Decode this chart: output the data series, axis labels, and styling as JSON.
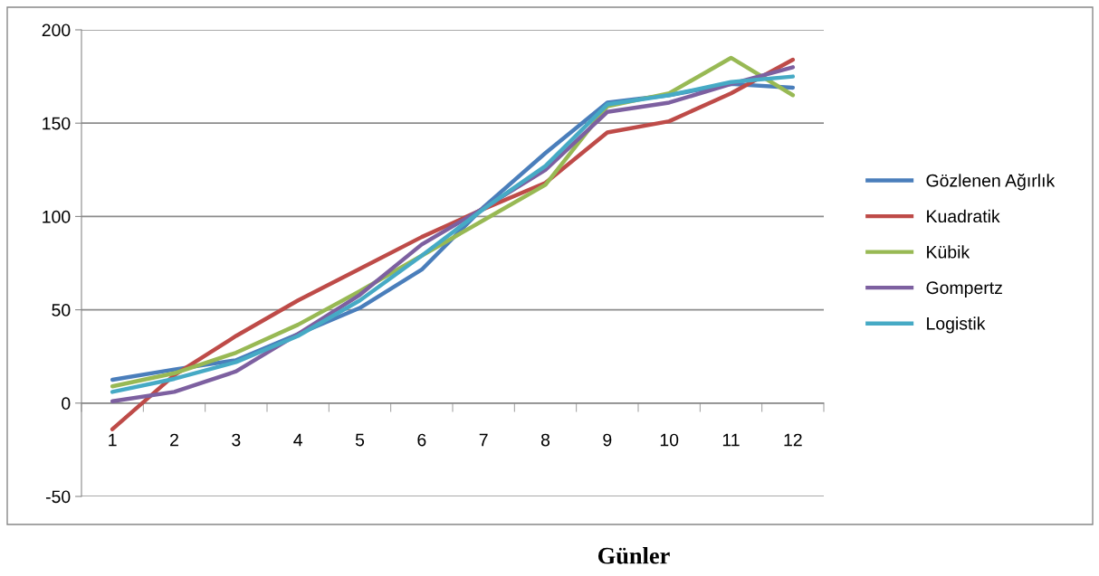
{
  "chart_data": {
    "type": "line",
    "xlabel": "Günler",
    "categories": [
      "1",
      "2",
      "3",
      "4",
      "5",
      "6",
      "7",
      "8",
      "9",
      "10",
      "11",
      "12"
    ],
    "series": [
      {
        "name": "Gözlenen Ağırlık",
        "color": "#4a7ebb",
        "values": [
          12.5,
          18,
          23,
          37,
          51,
          71.5,
          105,
          134,
          161,
          165,
          171,
          169
        ]
      },
      {
        "name": "Kuadratik",
        "color": "#be4b48",
        "values": [
          -14,
          15,
          36,
          55,
          72,
          89,
          104,
          118,
          145,
          151,
          166,
          184
        ]
      },
      {
        "name": "Kübik",
        "color": "#98b954",
        "values": [
          9,
          16,
          27,
          42,
          60,
          79,
          98,
          117,
          159,
          166,
          185,
          165
        ]
      },
      {
        "name": "Gompertz",
        "color": "#7d60a0",
        "values": [
          1,
          6,
          17,
          37,
          58,
          85,
          104.5,
          125,
          156,
          161,
          171,
          180
        ]
      },
      {
        "name": "Logistik",
        "color": "#46aac5",
        "values": [
          6,
          13,
          22,
          36,
          55,
          79,
          104,
          127,
          160,
          165,
          172,
          175
        ]
      }
    ],
    "ylim": [
      -50,
      200
    ],
    "yticks": [
      -50,
      0,
      50,
      100,
      150,
      200
    ],
    "grid": "y",
    "legend": "right",
    "marker": "none",
    "line_style": "solid"
  }
}
